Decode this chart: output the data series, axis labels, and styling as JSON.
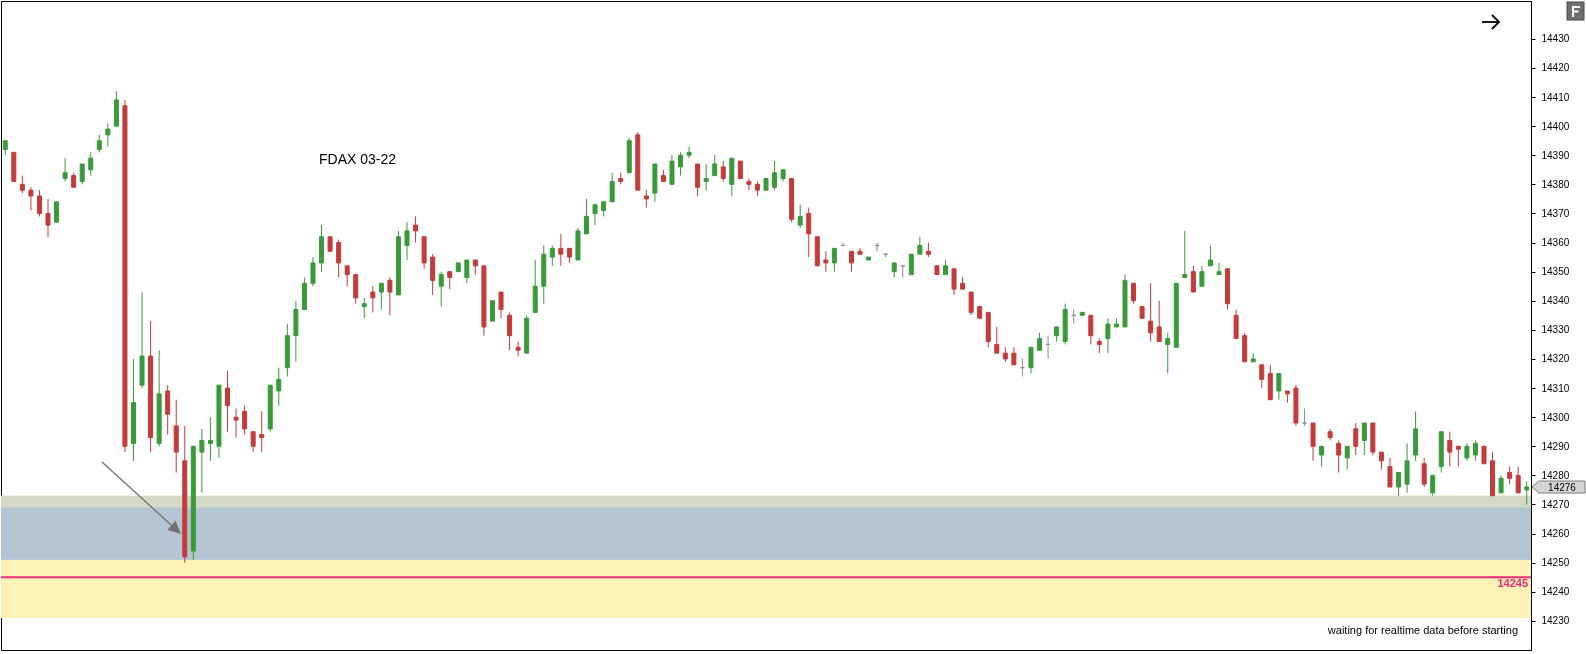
{
  "chart_data": {
    "type": "candlestick",
    "title": "FDAX 03-22",
    "categories": [
      null,
      null,
      null,
      null,
      null,
      null,
      null,
      null,
      null,
      null,
      null,
      null,
      null,
      null,
      null,
      null,
      null,
      null,
      null,
      null,
      null,
      null,
      null,
      null,
      null,
      null,
      null,
      null,
      null,
      null,
      null,
      null,
      null,
      null,
      null,
      null,
      null,
      null,
      null,
      null,
      null,
      null,
      null,
      null,
      null,
      null,
      null,
      null,
      null,
      null,
      null,
      null,
      null,
      null,
      null,
      null,
      null,
      null,
      null,
      null,
      null,
      null,
      null,
      null,
      null,
      null,
      null,
      null,
      null,
      null,
      null,
      null,
      null,
      null,
      null,
      null,
      null,
      null,
      null,
      null,
      null,
      null,
      null,
      null,
      null,
      null,
      null,
      null,
      null,
      null,
      null,
      null,
      null,
      null,
      null,
      null,
      null,
      null,
      null,
      null,
      null,
      null,
      null,
      null,
      null,
      null,
      null,
      null,
      null,
      null,
      null,
      null,
      null,
      null,
      null,
      null,
      null,
      null,
      null,
      null,
      null,
      null,
      null,
      null,
      null,
      null,
      null,
      null,
      null,
      null,
      null,
      null,
      null,
      null,
      null,
      null,
      null,
      null,
      null,
      null,
      null,
      null,
      null,
      null,
      null,
      null,
      null,
      null,
      null,
      null,
      null,
      null,
      null,
      null,
      null,
      null,
      null,
      null,
      null,
      null,
      null,
      null,
      null,
      null,
      null,
      null,
      null,
      null,
      null,
      null,
      null,
      null,
      null,
      null,
      null,
      null,
      null,
      null,
      null
    ],
    "ohlc": [
      [
        14392,
        14395,
        14390,
        14395
      ],
      [
        14391,
        14391,
        14381,
        14381
      ],
      [
        14380,
        14383,
        14377,
        14378
      ],
      [
        14378,
        14379,
        14371,
        14376
      ],
      [
        14376,
        14378,
        14369,
        14370
      ],
      [
        14370,
        14375,
        14362,
        14366
      ],
      [
        14367,
        14374,
        14367,
        14374
      ],
      [
        14382,
        14389,
        14381,
        14384
      ],
      [
        14383,
        14384,
        14379,
        14379
      ],
      [
        14381,
        14387,
        14380,
        14387
      ],
      [
        14385,
        14391,
        14383,
        14389
      ],
      [
        14392,
        14397,
        14391,
        14395
      ],
      [
        14397,
        14401,
        14393,
        14399
      ],
      [
        14400,
        14412,
        14400,
        14409
      ],
      [
        14407,
        14409,
        14288,
        14290
      ],
      [
        14291,
        14320,
        14285,
        14305
      ],
      [
        14311,
        14343,
        14310,
        14321
      ],
      [
        14321,
        14333,
        14288,
        14293
      ],
      [
        14291,
        14323,
        14290,
        14308
      ],
      [
        14309,
        14311,
        14294,
        14301
      ],
      [
        14297,
        14306,
        14281,
        14288
      ],
      [
        14285,
        14297,
        14250,
        14252
      ],
      [
        14254,
        14290,
        14251,
        14290
      ],
      [
        14288,
        14296,
        14274,
        14292
      ],
      [
        14291,
        14300,
        14285,
        14292
      ],
      [
        14290,
        14311,
        14286,
        14311
      ],
      [
        14310,
        14316,
        14295,
        14304
      ],
      [
        14300,
        14303,
        14293,
        14299
      ],
      [
        14302,
        14304,
        14294,
        14296
      ],
      [
        14295,
        14295,
        14288,
        14290
      ],
      [
        14294,
        14302,
        14288,
        14293
      ],
      [
        14296,
        14311,
        14295,
        14311
      ],
      [
        14309,
        14317,
        14304,
        14313
      ],
      [
        14317,
        14332,
        14314,
        14328
      ],
      [
        14328,
        14340,
        14319,
        14337
      ],
      [
        14337,
        14348,
        14337,
        14346
      ],
      [
        14346,
        14355,
        14345,
        14353
      ],
      [
        14353,
        14366,
        14350,
        14362
      ],
      [
        14362,
        14362,
        14357,
        14357
      ],
      [
        14360,
        14361,
        14348,
        14353
      ],
      [
        14352,
        14352,
        14345,
        14349
      ],
      [
        14349,
        14349,
        14339,
        14341
      ],
      [
        14338,
        14341,
        14334,
        14339
      ],
      [
        14343,
        14345,
        14336,
        14341
      ],
      [
        14343,
        14346,
        14337,
        14346
      ],
      [
        14347,
        14348,
        14335,
        14343
      ],
      [
        14342,
        14364,
        14342,
        14362
      ],
      [
        14359,
        14367,
        14354,
        14364
      ],
      [
        14366,
        14369,
        14360,
        14364
      ],
      [
        14362,
        14362,
        14351,
        14353
      ],
      [
        14355,
        14356,
        14342,
        14347
      ],
      [
        14345,
        14350,
        14338,
        14349
      ],
      [
        14350,
        14350,
        14344,
        14348
      ],
      [
        14350,
        14353,
        14350,
        14353
      ],
      [
        14348,
        14354,
        14346,
        14354
      ],
      [
        14354,
        14354,
        14349,
        14352
      ],
      [
        14352,
        14352,
        14328,
        14331
      ],
      [
        14333,
        14340,
        14333,
        14340
      ],
      [
        14343,
        14343,
        14334,
        14337
      ],
      [
        14335,
        14336,
        14323,
        14328
      ],
      [
        14324,
        14326,
        14321,
        14323
      ],
      [
        14322,
        14335,
        14322,
        14334
      ],
      [
        14336,
        14354,
        14336,
        14345
      ],
      [
        14345,
        14359,
        14339,
        14356
      ],
      [
        14355,
        14359,
        14352,
        14358
      ],
      [
        14358,
        14363,
        14352,
        14356
      ],
      [
        14358,
        14358,
        14353,
        14355
      ],
      [
        14354,
        14365,
        14354,
        14364
      ],
      [
        14363,
        14375,
        14363,
        14369
      ],
      [
        14370,
        14373,
        14366,
        14373
      ],
      [
        14371,
        14374,
        14369,
        14374
      ],
      [
        14374,
        14384,
        14374,
        14381
      ],
      [
        14382,
        14384,
        14380,
        14381
      ],
      [
        14384,
        14396,
        14384,
        14395
      ],
      [
        14397,
        14398,
        14378,
        14378
      ],
      [
        14376,
        14378,
        14372,
        14375
      ],
      [
        14377,
        14387,
        14374,
        14387
      ],
      [
        14383,
        14385,
        14381,
        14381
      ],
      [
        14380,
        14390,
        14380,
        14388
      ],
      [
        14386,
        14391,
        14383,
        14390
      ],
      [
        14390,
        14393,
        14389,
        14391
      ],
      [
        14387,
        14387,
        14376,
        14379
      ],
      [
        14381,
        14387,
        14378,
        14382
      ],
      [
        14383,
        14390,
        14383,
        14387
      ],
      [
        14386,
        14388,
        14381,
        14382
      ],
      [
        14380,
        14389,
        14376,
        14389
      ],
      [
        14388,
        14388,
        14382,
        14382
      ],
      [
        14381,
        14382,
        14378,
        14380
      ],
      [
        14380,
        14381,
        14376,
        14378
      ],
      [
        14378,
        14382,
        14378,
        14382
      ],
      [
        14379,
        14388,
        14378,
        14384
      ],
      [
        14382,
        14385,
        14381,
        14385
      ],
      [
        14382,
        14382,
        14367,
        14368
      ],
      [
        14366,
        14373,
        14365,
        14369
      ],
      [
        14370,
        14372,
        14355,
        14363
      ],
      [
        14362,
        14362,
        14352,
        14352
      ],
      [
        14354,
        14357,
        14350,
        14353
      ],
      [
        14353,
        14358,
        14350,
        14358
      ],
      [
        14359,
        14360,
        14359,
        14359
      ],
      [
        14357,
        14357,
        14350,
        14353
      ],
      [
        14357,
        14358,
        14356,
        14356
      ],
      [
        14354,
        14355,
        14354,
        14355
      ],
      [
        14359,
        14360,
        14357,
        14359
      ],
      [
        14356,
        14356,
        14355,
        14356
      ],
      [
        14350,
        14353,
        14348,
        14353
      ],
      [
        14352,
        14352,
        14348,
        14352
      ],
      [
        14349,
        14356,
        14349,
        14356
      ],
      [
        14356,
        14362,
        14356,
        14359
      ],
      [
        14357,
        14360,
        14355,
        14356
      ],
      [
        14352,
        14352,
        14349,
        14349
      ],
      [
        14349,
        14354,
        14349,
        14352
      ],
      [
        14351,
        14351,
        14342,
        14344
      ],
      [
        14346,
        14348,
        14344,
        14344
      ],
      [
        14343,
        14343,
        14335,
        14336
      ],
      [
        14338,
        14338,
        14334,
        14334
      ],
      [
        14336,
        14336,
        14324,
        14326
      ],
      [
        14325,
        14331,
        14322,
        14322
      ],
      [
        14322,
        14324,
        14319,
        14320
      ],
      [
        14322,
        14324,
        14318,
        14318
      ],
      [
        14317,
        14320,
        14314,
        14317
      ],
      [
        14317,
        14324,
        14315,
        14324
      ],
      [
        14323,
        14329,
        14323,
        14327
      ],
      [
        14325,
        14328,
        14320,
        14325
      ],
      [
        14328,
        14331,
        14326,
        14331
      ],
      [
        14326,
        14339,
        14325,
        14337
      ],
      [
        14335,
        14337,
        14332,
        14335
      ],
      [
        14335,
        14336,
        14335,
        14336
      ],
      [
        14335,
        14335,
        14325,
        14328
      ],
      [
        14326,
        14327,
        14322,
        14325
      ],
      [
        14327,
        14334,
        14322,
        14332
      ],
      [
        14331,
        14334,
        14331,
        14332
      ],
      [
        14331,
        14349,
        14331,
        14347
      ],
      [
        14346,
        14346,
        14339,
        14340
      ],
      [
        14338,
        14338,
        14334,
        14334
      ],
      [
        14333,
        14346,
        14326,
        14329
      ],
      [
        14331,
        14340,
        14326,
        14326
      ],
      [
        14325,
        14329,
        14315,
        14327
      ],
      [
        14324,
        14346,
        14324,
        14346
      ],
      [
        14348,
        14364,
        14348,
        14349
      ],
      [
        14350,
        14352,
        14343,
        14343
      ],
      [
        14345,
        14352,
        14345,
        14350
      ],
      [
        14352,
        14359,
        14352,
        14354
      ],
      [
        14349,
        14353,
        14349,
        14350
      ],
      [
        14351,
        14351,
        14337,
        14339
      ],
      [
        14335,
        14337,
        14327,
        14327
      ],
      [
        14328,
        14329,
        14319,
        14319
      ],
      [
        14319,
        14322,
        14319,
        14320
      ],
      [
        14318,
        14318,
        14310,
        14313
      ],
      [
        14315,
        14318,
        14306,
        14306
      ],
      [
        14309,
        14315,
        14306,
        14315
      ],
      [
        14309,
        14309,
        14305,
        14308
      ],
      [
        14310,
        14311,
        14297,
        14298
      ],
      [
        14298,
        14303,
        14297,
        14298
      ],
      [
        14298,
        14298,
        14285,
        14290
      ],
      [
        14287,
        14290,
        14283,
        14290
      ],
      [
        14295,
        14296,
        14292,
        14293
      ],
      [
        14291,
        14292,
        14281,
        14287
      ],
      [
        14286,
        14290,
        14282,
        14290
      ],
      [
        14296,
        14298,
        14287,
        14290
      ],
      [
        14292,
        14298,
        14287,
        14298
      ],
      [
        14298,
        14298,
        14287,
        14288
      ],
      [
        14288,
        14288,
        14282,
        14285
      ],
      [
        14283,
        14286,
        14276,
        14276
      ],
      [
        14276,
        14281,
        14273,
        14281
      ],
      [
        14277,
        14291,
        14274,
        14285
      ],
      [
        14287,
        14302,
        14285,
        14296
      ],
      [
        14284,
        14286,
        14276,
        14277
      ],
      [
        14274,
        14280,
        14273,
        14280
      ],
      [
        14283,
        14295,
        14281,
        14295
      ],
      [
        14292,
        14295,
        14283,
        14288
      ],
      [
        14290,
        14290,
        14283,
        14289
      ],
      [
        14286,
        14291,
        14285,
        14290
      ],
      [
        14287,
        14292,
        14285,
        14291
      ],
      [
        14290,
        14290,
        14284,
        14284
      ],
      [
        14285,
        14288,
        14273,
        14273
      ],
      [
        14274,
        14280,
        14274,
        14279
      ],
      [
        14281,
        14283,
        14277,
        14279
      ],
      [
        14280,
        14283,
        14274,
        14274
      ],
      [
        14275,
        14278,
        14270,
        14276
      ]
    ],
    "colors": [
      "#3a9a3a",
      "#c33b3b",
      "#c33b3b",
      "#c33b3b",
      "#c33b3b",
      "#c33b3b",
      "#3a9a3a",
      "#3a9a3a",
      "#c33b3b",
      "#3a9a3a",
      "#3a9a3a",
      "#3a9a3a",
      "#3a9a3a",
      "#3a9a3a",
      "#c33b3b",
      "#3a9a3a",
      "#3a9a3a",
      "#c33b3b",
      "#3a9a3a",
      "#c33b3b",
      "#c33b3b",
      "#c33b3b",
      "#3a9a3a",
      "#3a9a3a",
      "#3a9a3a",
      "#3a9a3a",
      "#c33b3b",
      "#c33b3b",
      "#c33b3b",
      "#c33b3b",
      "#c33b3b",
      "#3a9a3a",
      "#3a9a3a",
      "#3a9a3a",
      "#3a9a3a",
      "#3a9a3a",
      "#3a9a3a",
      "#3a9a3a",
      "#c33b3b",
      "#c33b3b",
      "#c33b3b",
      "#c33b3b",
      "#3a9a3a",
      "#c33b3b",
      "#3a9a3a",
      "#c33b3b",
      "#3a9a3a",
      "#3a9a3a",
      "#c33b3b",
      "#c33b3b",
      "#c33b3b",
      "#3a9a3a",
      "#c33b3b",
      "#3a9a3a",
      "#3a9a3a",
      "#c33b3b",
      "#c33b3b",
      "#3a9a3a",
      "#c33b3b",
      "#c33b3b",
      "#c33b3b",
      "#3a9a3a",
      "#3a9a3a",
      "#3a9a3a",
      "#3a9a3a",
      "#c33b3b",
      "#c33b3b",
      "#3a9a3a",
      "#3a9a3a",
      "#3a9a3a",
      "#3a9a3a",
      "#3a9a3a",
      "#c33b3b",
      "#3a9a3a",
      "#c33b3b",
      "#c33b3b",
      "#3a9a3a",
      "#c33b3b",
      "#3a9a3a",
      "#3a9a3a",
      "#3a9a3a",
      "#c33b3b",
      "#3a9a3a",
      "#3a9a3a",
      "#c33b3b",
      "#3a9a3a",
      "#c33b3b",
      "#c33b3b",
      "#c33b3b",
      "#3a9a3a",
      "#3a9a3a",
      "#3a9a3a",
      "#c33b3b",
      "#3a9a3a",
      "#c33b3b",
      "#c33b3b",
      "#c33b3b",
      "#3a9a3a",
      "#8c8c8c",
      "#c33b3b",
      "#c33b3b",
      "#3a9a3a",
      "#8c8c8c",
      "#8c8c8c",
      "#3a9a3a",
      "#8c8c8c",
      "#3a9a3a",
      "#3a9a3a",
      "#c33b3b",
      "#c33b3b",
      "#3a9a3a",
      "#c33b3b",
      "#c33b3b",
      "#c33b3b",
      "#c33b3b",
      "#c33b3b",
      "#c33b3b",
      "#c33b3b",
      "#c33b3b",
      "#8c8c8c",
      "#3a9a3a",
      "#3a9a3a",
      "#8c8c8c",
      "#3a9a3a",
      "#3a9a3a",
      "#8c8c8c",
      "#3a9a3a",
      "#c33b3b",
      "#c33b3b",
      "#3a9a3a",
      "#3a9a3a",
      "#3a9a3a",
      "#c33b3b",
      "#c33b3b",
      "#c33b3b",
      "#c33b3b",
      "#3a9a3a",
      "#3a9a3a",
      "#3a9a3a",
      "#c33b3b",
      "#3a9a3a",
      "#3a9a3a",
      "#3a9a3a",
      "#c33b3b",
      "#c33b3b",
      "#c33b3b",
      "#3a9a3a",
      "#c33b3b",
      "#c33b3b",
      "#3a9a3a",
      "#c33b3b",
      "#c33b3b",
      "#8c8c8c",
      "#c33b3b",
      "#3a9a3a",
      "#c33b3b",
      "#c33b3b",
      "#3a9a3a",
      "#c33b3b",
      "#3a9a3a",
      "#c33b3b",
      "#c33b3b",
      "#c33b3b",
      "#3a9a3a",
      "#3a9a3a",
      "#3a9a3a",
      "#c33b3b",
      "#3a9a3a",
      "#3a9a3a",
      "#c33b3b",
      "#c33b3b",
      "#3a9a3a",
      "#3a9a3a",
      "#c33b3b",
      "#c33b3b",
      "#3a9a3a",
      "#c33b3b",
      "#c33b3b",
      "#3a9a3a"
    ],
    "ylim": [
      14220,
      14443
    ],
    "yticks": [
      14230,
      14240,
      14250,
      14260,
      14270,
      14280,
      14290,
      14300,
      14310,
      14320,
      14330,
      14340,
      14350,
      14360,
      14370,
      14380,
      14390,
      14400,
      14410,
      14420,
      14430
    ],
    "tick_labels": "y",
    "bands": [
      {
        "axis": "y",
        "from": 14231,
        "to": 14273,
        "color": "#fdf2b6"
      },
      {
        "axis": "y",
        "from": 14251,
        "to": 14273,
        "color": "#d4d9c6"
      },
      {
        "axis": "y",
        "from": 14251,
        "to": 14269,
        "color": "#b3c5d3"
      }
    ],
    "ref_lines": [
      {
        "axis": "y",
        "value": 14245,
        "label": "14245",
        "color": "#ec2a7a"
      }
    ],
    "annotations": [
      "waiting for realtime data before starting",
      "14276"
    ]
  }
}
